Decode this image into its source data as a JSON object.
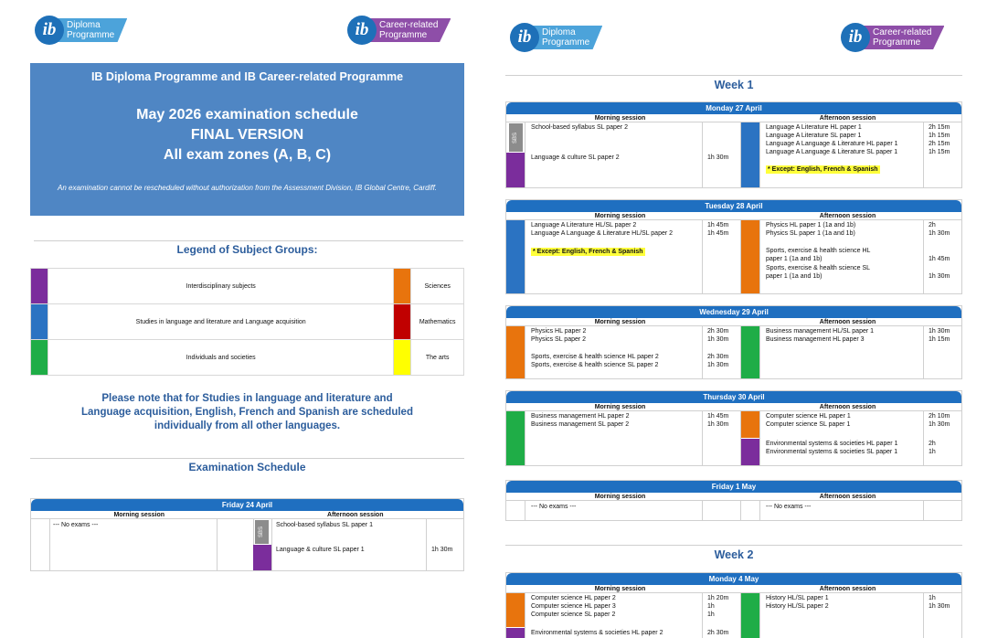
{
  "logos": {
    "dp_line1": "Diploma",
    "dp_line2": "Programme",
    "cp_line1": "Career-related",
    "cp_line2": "Programme",
    "ib": "ib"
  },
  "colors": {
    "interdisciplinary": "#7b2d9c",
    "language": "#2b73c2",
    "individuals": "#1fad47",
    "sciences": "#e8740d",
    "mathematics": "#c00000",
    "arts": "#ffff00",
    "header": "#1f6fc0"
  },
  "banner": {
    "title": "IB Diploma Programme and IB Career-related Programme",
    "line1": "May 2026 examination schedule",
    "line2": "FINAL VERSION",
    "line3": "All exam zones (A, B, C)",
    "note": "An examination cannot be rescheduled without authorization from the Assessment Division, IB Global Centre, Cardiff."
  },
  "legend": {
    "title": "Legend of Subject Groups:",
    "items": {
      "interdisciplinary": "Interdisciplinary subjects",
      "studies": "Studies in language and literature and Language acquisition",
      "individuals": "Individuals and societies",
      "sciences": "Sciences",
      "mathematics": "Mathematics",
      "arts": "The arts"
    }
  },
  "please_note": "Please note that for Studies in language and literature and Language acquisition, English, French and Spanish are scheduled individually from all other languages.",
  "section_title": "Examination Schedule",
  "session_labels": {
    "morning": "Morning session",
    "afternoon": "Afternoon session"
  },
  "sbs": "SBS",
  "no_exams": "--- No exams ---",
  "weeks": {
    "w1": "Week 1",
    "w2": "Week 2"
  },
  "days": {
    "fri24": {
      "title": "Friday 24 April",
      "am": {
        "no": "--- No exams ---"
      },
      "pm": {
        "s1": "School-based syllabus SL paper 1",
        "s2": "Language & culture SL paper 1",
        "d2": "1h 30m"
      }
    },
    "mon27": {
      "title": "Monday 27 April",
      "am": {
        "s1": "School-based syllabus SL paper 2",
        "s2": "Language & culture SL paper 2",
        "d2": "1h 30m"
      },
      "pm": {
        "s1": "Language A Literature HL paper 1",
        "d1": "2h 15m",
        "s2": "Language A Literature SL paper 1",
        "d2": "1h 15m",
        "s3": "Language A Language & Literature HL paper 1",
        "d3": "2h 15m",
        "s4": "Language A Language & Literature SL paper 1",
        "d4": "1h 15m",
        "exc": "* Except: English, French & Spanish"
      }
    },
    "tue28": {
      "title": "Tuesday 28 April",
      "am": {
        "s1": "Language A Literature HL/SL paper 2",
        "d1": "1h 45m",
        "s2": "Language A Language & Literature HL/SL paper 2",
        "d2": "1h 45m",
        "exc": "* Except: English, French & Spanish"
      },
      "pm": {
        "s1": "Physics HL paper 1 (1a and 1b)",
        "d1": "2h",
        "s2": "Physics SL paper 1 (1a and 1b)",
        "d2": "1h 30m",
        "s3a": "Sports, exercise & health science HL",
        "s3b": "paper 1 (1a and 1b)",
        "d3": "1h 45m",
        "s4a": "Sports, exercise & health science SL",
        "s4b": "paper 1 (1a and 1b)",
        "d4": "1h 30m"
      }
    },
    "wed29": {
      "title": "Wednesday 29 April",
      "am": {
        "s1": "Physics HL paper 2",
        "d1": "2h 30m",
        "s2": "Physics SL paper 2",
        "d2": "1h 30m",
        "s3": "Sports, exercise & health science HL paper 2",
        "d3": "2h 30m",
        "s4": "Sports, exercise & health science SL paper 2",
        "d4": "1h 30m"
      },
      "pm": {
        "s1": "Business management HL/SL paper 1",
        "d1": "1h 30m",
        "s2": "Business management HL paper 3",
        "d2": "1h 15m"
      }
    },
    "thu30": {
      "title": "Thursday 30 April",
      "am": {
        "s1": "Business management HL paper 2",
        "d1": "1h 45m",
        "s2": "Business management SL paper 2",
        "d2": "1h 30m"
      },
      "pm": {
        "s1": "Computer science HL paper 1",
        "d1": "2h 10m",
        "s2": "Computer science SL paper 1",
        "d2": "1h 30m",
        "s3": "Environmental systems & societies HL paper 1",
        "d3": "2h",
        "s4": "Environmental systems & societies SL paper 1",
        "d4": "1h"
      }
    },
    "fri1": {
      "title": "Friday 1 May",
      "am": {
        "no": "--- No exams ---"
      },
      "pm": {
        "no": "--- No exams ---"
      }
    },
    "mon4": {
      "title": "Monday 4 May",
      "am": {
        "s1": "Computer science HL paper 2",
        "d1": "1h 20m",
        "s2": "Computer science HL paper 3",
        "d2": "1h",
        "s3": "Computer science SL paper 2",
        "d3": "1h",
        "s4": "Environmental systems & societies HL paper 2",
        "d4": "2h 30m"
      },
      "pm": {
        "s1": "History HL/SL paper 1",
        "d1": "1h",
        "s2": "History HL/SL paper 2",
        "d2": "1h 30m"
      }
    }
  }
}
